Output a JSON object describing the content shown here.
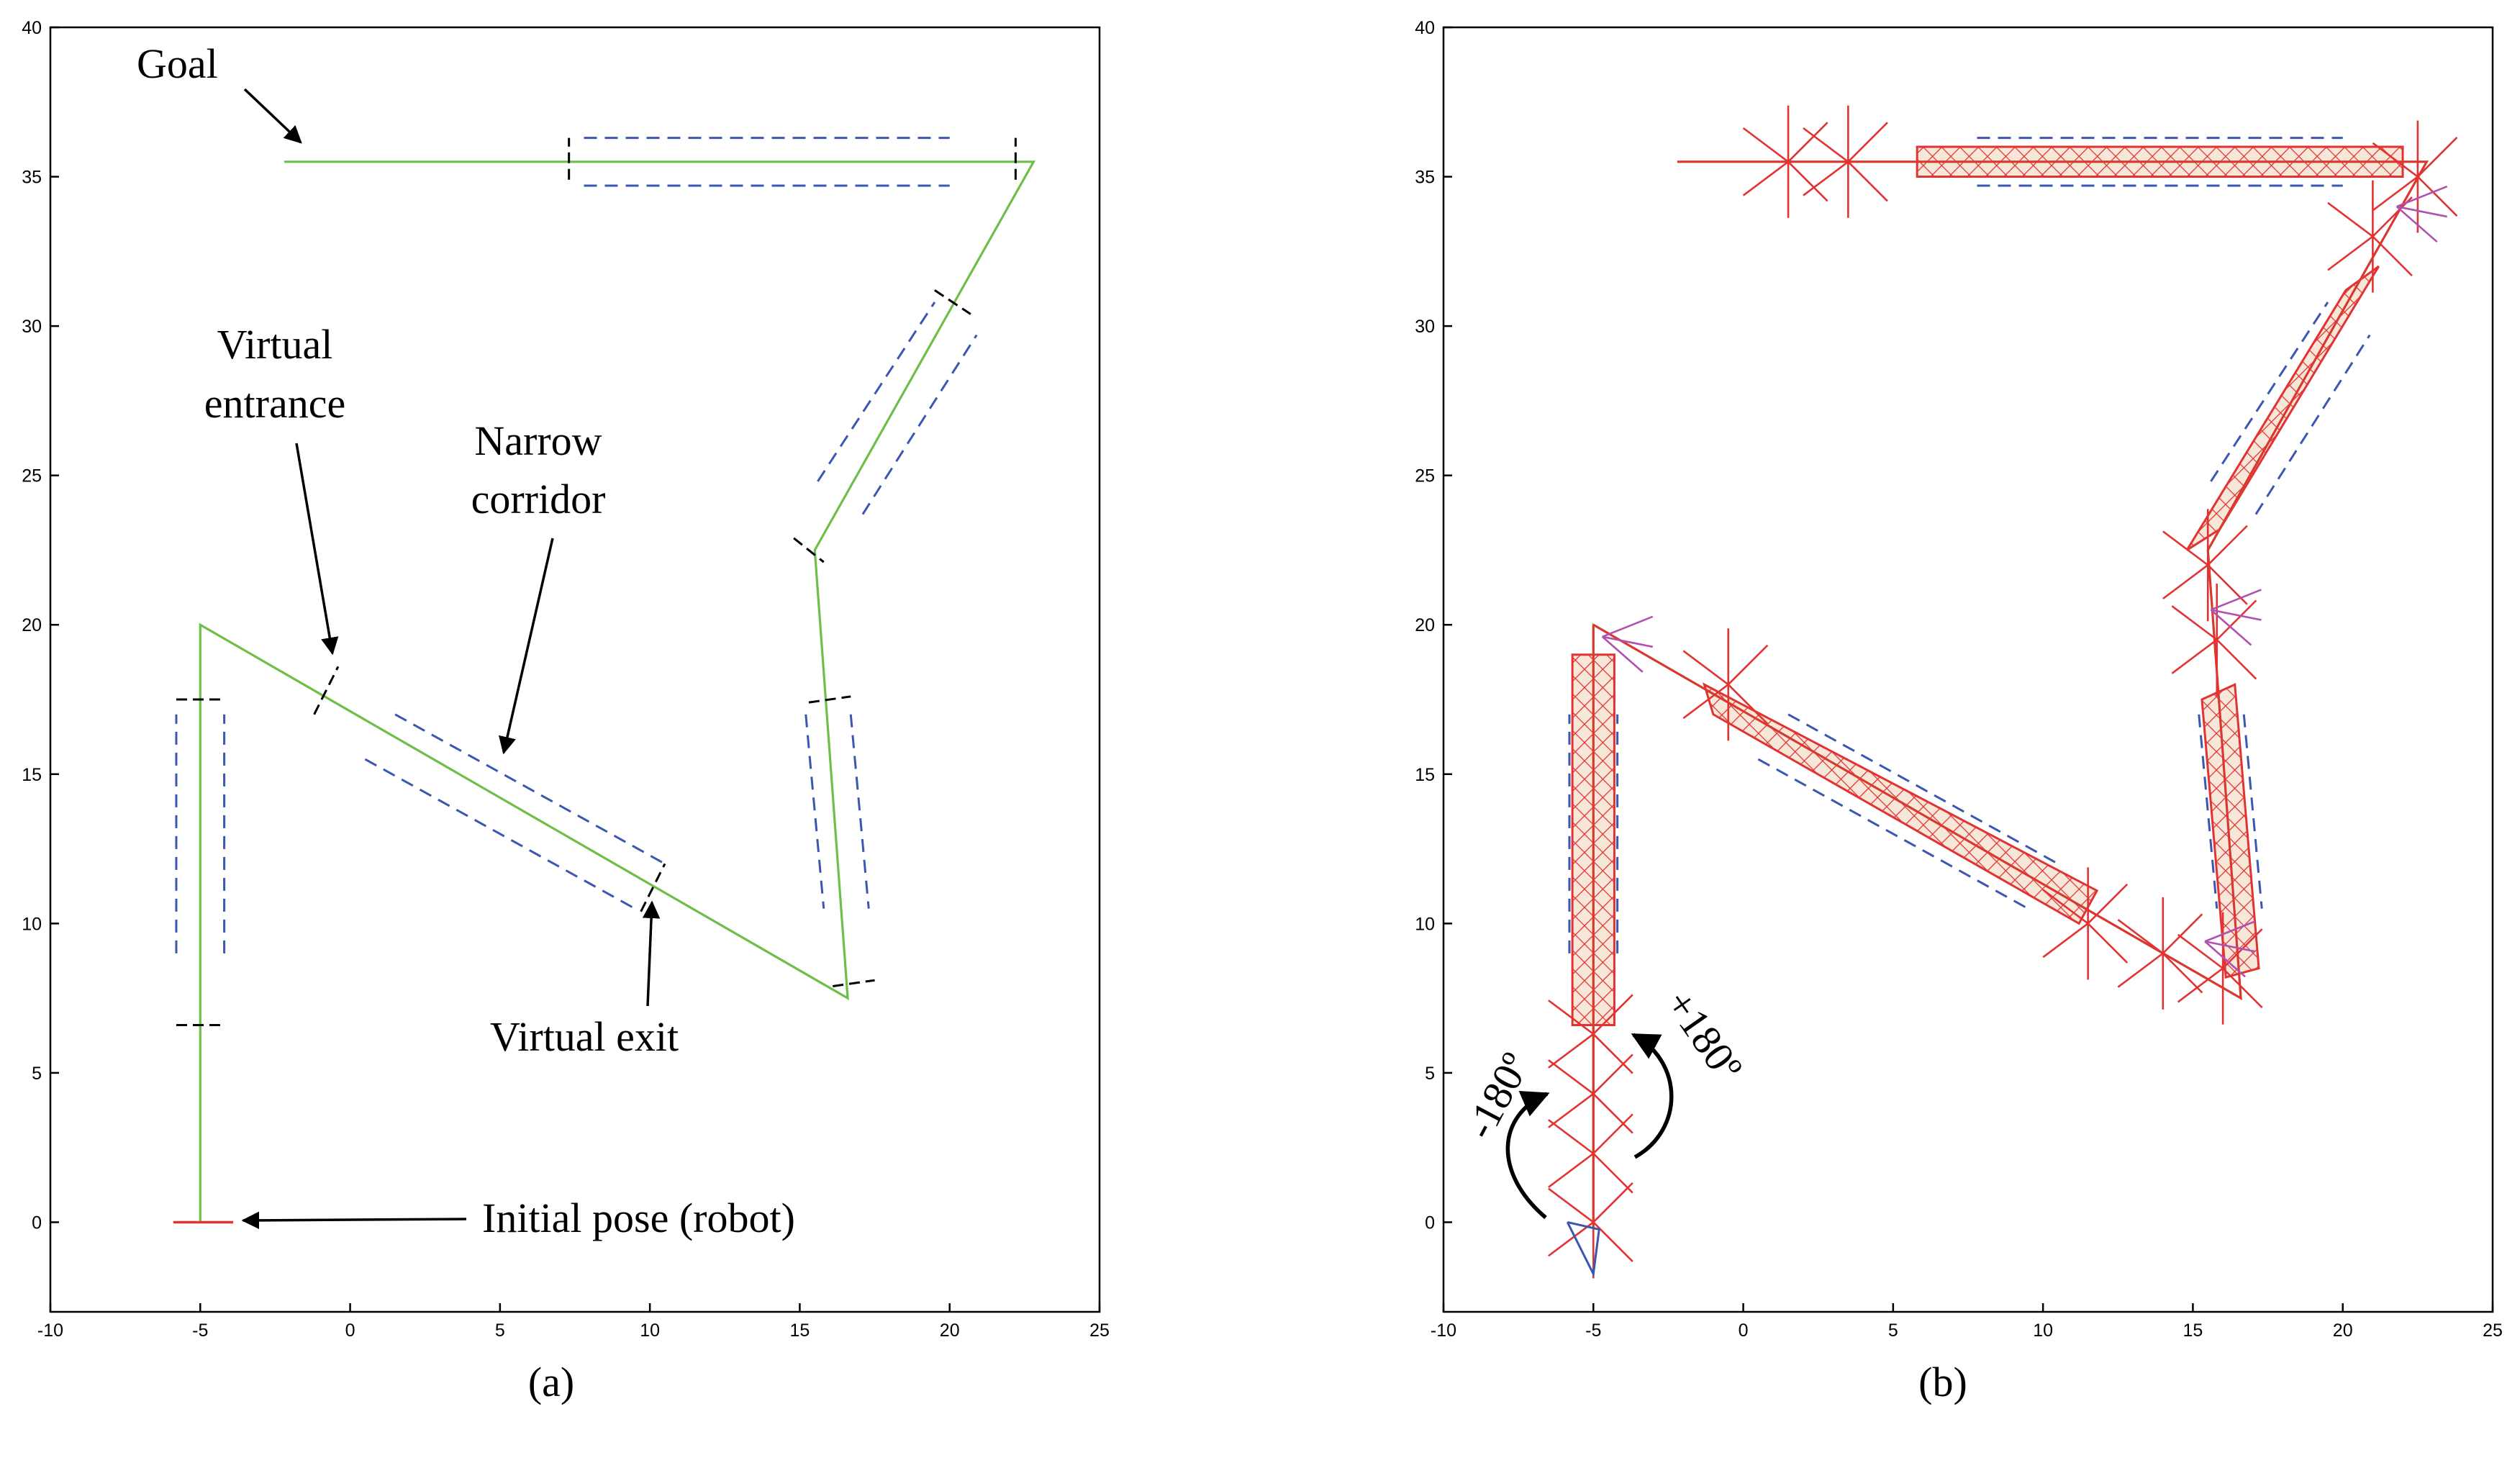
{
  "colors": {
    "path": "#6fbe4a",
    "corridor": "#3b57b0",
    "boundary": "#000000",
    "robot": "#e23333",
    "marks": "#e23333",
    "turn": "#b050b0"
  },
  "panels": [
    {
      "caption": "(a)",
      "annotations": [
        {
          "text": "Goal",
          "role": "goal"
        },
        {
          "text": "Virtual",
          "role": "entrance-1"
        },
        {
          "text": "entrance",
          "role": "entrance-2"
        },
        {
          "text": "Narrow",
          "role": "narrow-1"
        },
        {
          "text": "corridor",
          "role": "narrow-2"
        },
        {
          "text": "Virtual exit",
          "role": "exit"
        },
        {
          "text": "Initial pose (robot)",
          "role": "initial"
        }
      ]
    },
    {
      "caption": "(b)",
      "annotations": [
        {
          "text": "-180º",
          "role": "minus180"
        },
        {
          "text": "+180º",
          "role": "plus180"
        }
      ]
    }
  ],
  "chart_data": [
    {
      "type": "line",
      "xlim": [
        -10,
        25
      ],
      "ylim": [
        -3,
        40
      ],
      "xticks": [
        -10,
        -5,
        0,
        5,
        10,
        15,
        20,
        25
      ],
      "yticks": [
        0,
        5,
        10,
        15,
        20,
        25,
        30,
        35,
        40
      ],
      "grid": false,
      "path": [
        [
          -5,
          0
        ],
        [
          -5,
          20
        ],
        [
          16.6,
          7.5
        ],
        [
          15.5,
          22.5
        ],
        [
          22.8,
          35.5
        ],
        [
          -2.2,
          35.5
        ]
      ],
      "robot_pose": [
        [
          -5.9,
          0
        ],
        [
          -3.9,
          0
        ]
      ],
      "corridors": [
        {
          "side_a": [
            [
              -5.8,
              9
            ],
            [
              -5.8,
              17
            ]
          ],
          "side_b": [
            [
              -4.2,
              9
            ],
            [
              -4.2,
              17
            ]
          ]
        },
        {
          "side_a": [
            [
              1.5,
              17
            ],
            [
              10.5,
              12
            ]
          ],
          "side_b": [
            [
              0.5,
              15.5
            ],
            [
              9.5,
              10.5
            ]
          ]
        },
        {
          "side_a": [
            [
              15.2,
              17
            ],
            [
              15.8,
              10.5
            ]
          ],
          "side_b": [
            [
              16.7,
              17
            ],
            [
              17.3,
              10.5
            ]
          ]
        },
        {
          "side_a": [
            [
              15.6,
              24.8
            ],
            [
              19.5,
              30.8
            ]
          ],
          "side_b": [
            [
              17.1,
              23.7
            ],
            [
              20.9,
              29.7
            ]
          ]
        },
        {
          "side_a": [
            [
              7.8,
              36.3
            ],
            [
              20,
              36.3
            ]
          ],
          "side_b": [
            [
              7.8,
              34.7
            ],
            [
              20,
              34.7
            ]
          ]
        }
      ],
      "boundaries": [
        [
          [
            -5.8,
            17.5
          ],
          [
            -4.2,
            17.5
          ]
        ],
        [
          [
            -5.8,
            6.6
          ],
          [
            -4.2,
            6.6
          ]
        ],
        [
          [
            -1.2,
            17
          ],
          [
            -0.4,
            18.6
          ]
        ],
        [
          [
            9.7,
            10.4
          ],
          [
            10.5,
            12
          ]
        ],
        [
          [
            15.3,
            17.4
          ],
          [
            16.7,
            17.6
          ]
        ],
        [
          [
            16.1,
            7.9
          ],
          [
            17.5,
            8.1
          ]
        ],
        [
          [
            14.8,
            22.9
          ],
          [
            15.8,
            22.1
          ]
        ],
        [
          [
            19.5,
            31.2
          ],
          [
            20.7,
            30.4
          ]
        ],
        [
          [
            7.3,
            34.9
          ],
          [
            7.3,
            36.3
          ]
        ],
        [
          [
            22.2,
            34.9
          ],
          [
            22.2,
            36.3
          ]
        ]
      ]
    },
    {
      "type": "line",
      "xlim": [
        -10,
        25
      ],
      "ylim": [
        -3,
        40
      ],
      "xticks": [
        -10,
        -5,
        0,
        5,
        10,
        15,
        20,
        25
      ],
      "yticks": [
        0,
        5,
        10,
        15,
        20,
        25,
        30,
        35,
        40
      ],
      "grid": false,
      "path": [
        [
          -5,
          0
        ],
        [
          -5,
          20
        ],
        [
          16.6,
          7.5
        ],
        [
          15.5,
          22.5
        ],
        [
          22.8,
          35.5
        ],
        [
          -2.2,
          35.5
        ]
      ],
      "corridors": [
        {
          "side_a": [
            [
              -5.8,
              9
            ],
            [
              -5.8,
              17
            ]
          ],
          "side_b": [
            [
              -4.2,
              9
            ],
            [
              -4.2,
              17
            ]
          ]
        },
        {
          "side_a": [
            [
              1.5,
              17
            ],
            [
              10.5,
              12
            ]
          ],
          "side_b": [
            [
              0.5,
              15.5
            ],
            [
              9.5,
              10.5
            ]
          ]
        },
        {
          "side_a": [
            [
              15.2,
              17
            ],
            [
              15.8,
              10.5
            ]
          ],
          "side_b": [
            [
              16.7,
              17
            ],
            [
              17.3,
              10.5
            ]
          ]
        },
        {
          "side_a": [
            [
              15.6,
              24.8
            ],
            [
              19.5,
              30.8
            ]
          ],
          "side_b": [
            [
              17.1,
              23.7
            ],
            [
              20.9,
              29.7
            ]
          ]
        },
        {
          "side_a": [
            [
              7.8,
              36.3
            ],
            [
              20,
              36.3
            ]
          ],
          "side_b": [
            [
              7.8,
              34.7
            ],
            [
              20,
              34.7
            ]
          ]
        }
      ],
      "hatched_corridors": [
        [
          [
            -5.7,
            19
          ],
          [
            -4.3,
            19
          ],
          [
            -4.3,
            6.6
          ],
          [
            -5.7,
            6.6
          ]
        ],
        [
          [
            -1.3,
            18.0
          ],
          [
            11.8,
            11.1
          ],
          [
            11.2,
            10.0
          ],
          [
            -1.0,
            17.0
          ]
        ],
        [
          [
            15.3,
            17.5
          ],
          [
            16.4,
            18.0
          ],
          [
            17.2,
            8.5
          ],
          [
            16.1,
            8.2
          ]
        ],
        [
          [
            14.8,
            22.5
          ],
          [
            15.9,
            23.2
          ],
          [
            21.2,
            32.0
          ],
          [
            20.1,
            31.2
          ]
        ],
        [
          [
            5.8,
            36.0
          ],
          [
            22.0,
            36.0
          ],
          [
            22.0,
            35.0
          ],
          [
            5.8,
            35.0
          ]
        ]
      ],
      "poses": [
        [
          -5,
          0
        ],
        [
          -5,
          2.3
        ],
        [
          -5,
          4.3
        ],
        [
          -5,
          6.3
        ],
        [
          1.5,
          35.5
        ],
        [
          3.5,
          35.5
        ],
        [
          -0.5,
          18
        ],
        [
          11.5,
          10
        ],
        [
          14,
          9
        ],
        [
          16,
          8.5
        ],
        [
          15.8,
          19.5
        ],
        [
          15.5,
          22
        ],
        [
          21,
          33
        ],
        [
          22.5,
          35
        ]
      ]
    }
  ]
}
